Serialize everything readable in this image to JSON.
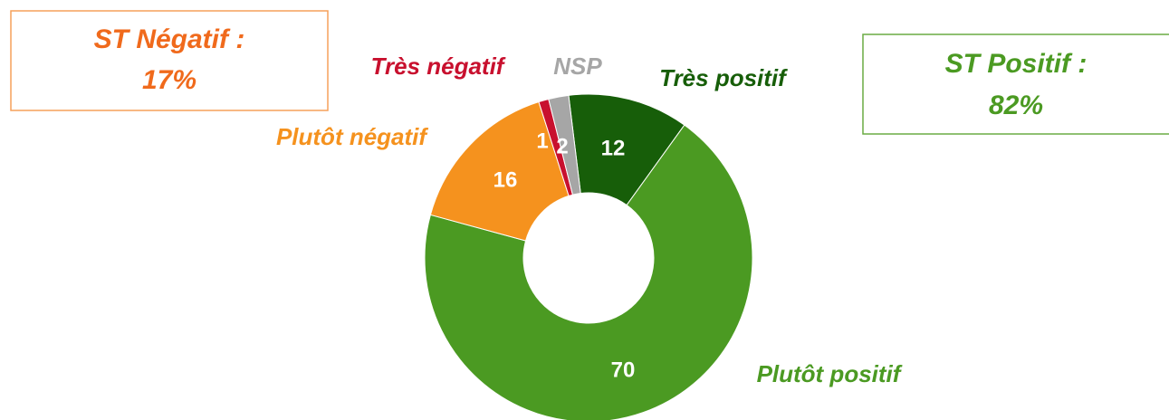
{
  "chart_data": {
    "type": "donut",
    "categories": [
      "Très positif",
      "Plutôt positif",
      "Plutôt négatif",
      "Très négatif",
      "NSP"
    ],
    "values": [
      12,
      70,
      16,
      1,
      2
    ],
    "colors": [
      "#175e09",
      "#4b9a22",
      "#f5921e",
      "#c8102e",
      "#a6a6a6"
    ],
    "annotations": [
      {
        "text": "ST Négatif :",
        "value": "17%",
        "color": "#f06a1c"
      },
      {
        "text": "ST Positif :",
        "value": "82%",
        "color": "#4b9a22"
      }
    ]
  }
}
